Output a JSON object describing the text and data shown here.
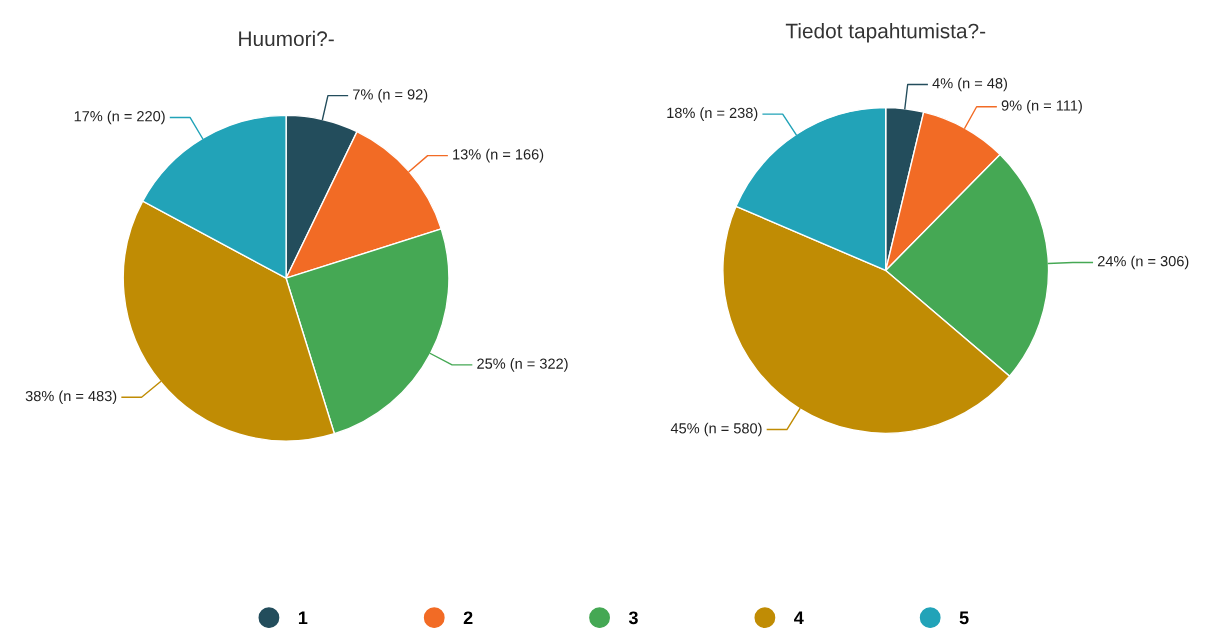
{
  "chart_data": [
    {
      "type": "pie",
      "title": "Huumori?-",
      "categories": [
        "1",
        "2",
        "3",
        "4",
        "5"
      ],
      "values": [
        92,
        166,
        322,
        483,
        220
      ],
      "colors": [
        "#234d5c",
        "#f26b25",
        "#45a854",
        "#c08c04",
        "#22a3b8"
      ],
      "value_labels": [
        "7% (n = 92)",
        "13% (n = 166)",
        "25% (n = 322)",
        "38% (n = 483)",
        "17% (n = 220)"
      ],
      "legend": "bottom"
    },
    {
      "type": "pie",
      "title": "Tiedot tapahtumista?-",
      "categories": [
        null,
        null,
        null,
        null,
        null
      ],
      "values": [
        48,
        111,
        306,
        580,
        238
      ],
      "colors": [
        "#234d5c",
        "#f26b25",
        "#45a854",
        "#c08c04",
        "#22a3b8"
      ],
      "value_labels": [
        "4% (n = 48)",
        "9% (n = 111)",
        "24% (n = 306)",
        "45% (n = 580)",
        "18% (n = 238)"
      ]
    }
  ]
}
